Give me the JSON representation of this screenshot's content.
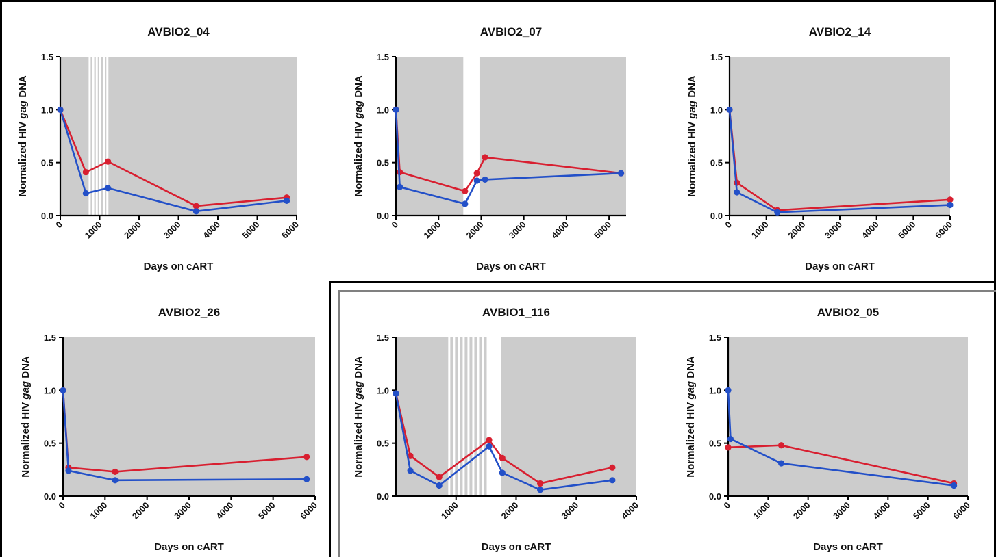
{
  "y_axis_label": {
    "prefix": "Normalized HIV ",
    "italic": "gag",
    "suffix": " DNA"
  },
  "x_axis_label": "Days on cART",
  "colors": {
    "red": "#d81f30",
    "blue": "#2350c8",
    "shade": "#cccccc",
    "axis": "#000000"
  },
  "chart_data": [
    {
      "type": "line",
      "title": "AVBIO2_04",
      "xlabel": "Days on cART",
      "ylabel": "Normalized HIV gag DNA",
      "xlim": [
        0,
        6000
      ],
      "ylim": [
        0,
        1.5
      ],
      "xticks": [
        0,
        1000,
        2000,
        3000,
        4000,
        5000,
        6000
      ],
      "yticks": [
        0.0,
        0.5,
        1.0,
        1.5
      ],
      "shaded_ranges": [
        [
          0,
          720
        ],
        [
          1230,
          6000
        ]
      ],
      "white_lines": [
        720,
        810,
        900,
        990,
        1080,
        1170
      ],
      "series": [
        {
          "color": "red",
          "x": [
            0,
            650,
            1210,
            3450,
            5750
          ],
          "y": [
            1.0,
            0.41,
            0.51,
            0.09,
            0.17
          ]
        },
        {
          "color": "blue",
          "x": [
            0,
            650,
            1210,
            3450,
            5750
          ],
          "y": [
            1.0,
            0.21,
            0.26,
            0.04,
            0.14
          ]
        }
      ]
    },
    {
      "type": "line",
      "title": "AVBIO2_07",
      "xlabel": "Days on cART",
      "ylabel": "Normalized HIV gag DNA",
      "xlim": [
        0,
        5400
      ],
      "ylim": [
        0,
        1.5
      ],
      "xticks": [
        0,
        1000,
        2000,
        3000,
        4000,
        5000
      ],
      "yticks": [
        0.0,
        0.5,
        1.0,
        1.5
      ],
      "shaded_ranges": [
        [
          0,
          1580
        ],
        [
          1960,
          5400
        ]
      ],
      "white_lines": [],
      "series": [
        {
          "color": "red",
          "x": [
            0,
            90,
            1620,
            1900,
            2090,
            5280
          ],
          "y": [
            1.0,
            0.41,
            0.23,
            0.4,
            0.55,
            0.4
          ]
        },
        {
          "color": "blue",
          "x": [
            0,
            90,
            1620,
            1900,
            2090,
            5280
          ],
          "y": [
            1.0,
            0.27,
            0.11,
            0.33,
            0.34,
            0.4
          ]
        }
      ]
    },
    {
      "type": "line",
      "title": "AVBIO2_14",
      "xlabel": "Days on cART",
      "ylabel": "Normalized HIV gag DNA",
      "xlim": [
        0,
        6000
      ],
      "ylim": [
        0,
        1.5
      ],
      "xticks": [
        0,
        1000,
        2000,
        3000,
        4000,
        5000,
        6000
      ],
      "yticks": [
        0.0,
        0.5,
        1.0,
        1.5
      ],
      "shaded_ranges": [
        [
          0,
          6000
        ]
      ],
      "white_lines": [],
      "series": [
        {
          "color": "red",
          "x": [
            0,
            200,
            1300,
            6000
          ],
          "y": [
            1.0,
            0.31,
            0.05,
            0.15
          ]
        },
        {
          "color": "blue",
          "x": [
            0,
            200,
            1300,
            6000
          ],
          "y": [
            1.0,
            0.22,
            0.03,
            0.1
          ]
        }
      ]
    },
    {
      "type": "line",
      "title": "AVBIO2_26",
      "xlabel": "Days on cART",
      "ylabel": "Normalized HIV gag DNA",
      "xlim": [
        0,
        6000
      ],
      "ylim": [
        0,
        1.5
      ],
      "xticks": [
        0,
        1000,
        2000,
        3000,
        4000,
        5000,
        6000
      ],
      "yticks": [
        0.0,
        0.5,
        1.0,
        1.5
      ],
      "shaded_ranges": [
        [
          0,
          6000
        ]
      ],
      "white_lines": [],
      "series": [
        {
          "color": "red",
          "x": [
            0,
            130,
            1240,
            5800
          ],
          "y": [
            1.0,
            0.27,
            0.23,
            0.37
          ]
        },
        {
          "color": "blue",
          "x": [
            0,
            130,
            1240,
            5800
          ],
          "y": [
            1.0,
            0.24,
            0.15,
            0.16
          ]
        }
      ]
    },
    {
      "type": "line",
      "title": "AVBIO1_116",
      "xlabel": "Days on cART",
      "ylabel": "Normalized HIV gag DNA",
      "xlim": [
        0,
        4000
      ],
      "ylim": [
        0,
        1.5
      ],
      "xticks": [
        1000,
        2000,
        3000,
        4000
      ],
      "yticks": [
        0.0,
        0.5,
        1.0,
        1.5
      ],
      "shaded_ranges": [
        [
          0,
          870
        ],
        [
          1750,
          4000
        ]
      ],
      "white_lines": [
        870,
        950,
        1030,
        1110,
        1190,
        1270,
        1350,
        1430
      ],
      "series": [
        {
          "color": "red",
          "x": [
            0,
            240,
            720,
            1550,
            1770,
            2400,
            3600
          ],
          "y": [
            0.97,
            0.38,
            0.18,
            0.53,
            0.36,
            0.12,
            0.27
          ]
        },
        {
          "color": "blue",
          "x": [
            0,
            240,
            720,
            1550,
            1770,
            2400,
            3600
          ],
          "y": [
            0.97,
            0.24,
            0.1,
            0.47,
            0.22,
            0.06,
            0.15
          ]
        }
      ]
    },
    {
      "type": "line",
      "title": "AVBIO2_05",
      "xlabel": "Days on cART",
      "ylabel": "Normalized HIV gag DNA",
      "xlim": [
        0,
        6000
      ],
      "ylim": [
        0,
        1.5
      ],
      "xticks": [
        0,
        1000,
        2000,
        3000,
        4000,
        5000,
        6000
      ],
      "yticks": [
        0.0,
        0.5,
        1.0,
        1.5
      ],
      "shaded_ranges": [
        [
          0,
          6000
        ]
      ],
      "white_lines": [],
      "series": [
        {
          "color": "red",
          "x": [
            0,
            1330,
            5650
          ],
          "y": [
            0.46,
            0.48,
            0.12
          ]
        },
        {
          "color": "blue",
          "x": [
            0,
            60,
            1330,
            5650
          ],
          "y": [
            1.0,
            0.54,
            0.31,
            0.1
          ]
        }
      ]
    }
  ]
}
